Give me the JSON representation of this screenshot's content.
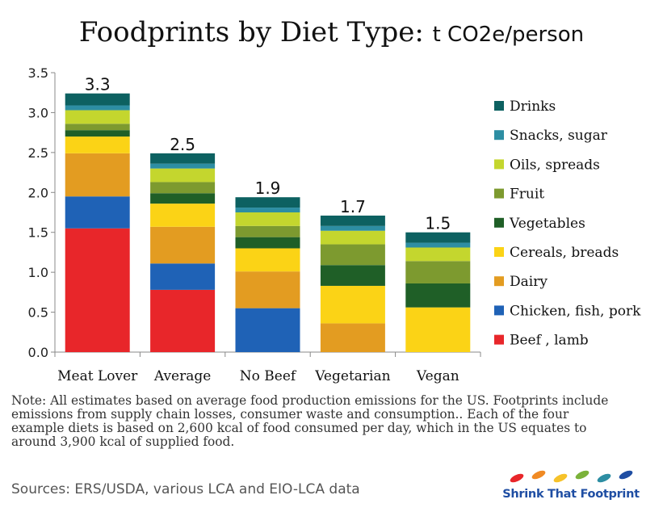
{
  "title": {
    "main": "Foodprints by Diet Type: ",
    "unit": "t CO2e/person"
  },
  "chart_data": {
    "type": "bar",
    "stacked": true,
    "categories": [
      "Meat Lover",
      "Average",
      "No Beef",
      "Vegetarian",
      "Vegan"
    ],
    "totals": [
      "3.3",
      "2.5",
      "1.9",
      "1.7",
      "1.5"
    ],
    "ylim": [
      0,
      3.5
    ],
    "yticks": [
      "0.0",
      "0.5",
      "1.0",
      "1.5",
      "2.0",
      "2.5",
      "3.0",
      "3.5"
    ],
    "grid": false,
    "legend_position": "right",
    "series": [
      {
        "name": "Beef , lamb",
        "color": "#e8262a",
        "values": [
          1.55,
          0.78,
          0,
          0,
          0
        ]
      },
      {
        "name": "Chicken, fish, pork",
        "color": "#1f62b6",
        "values": [
          0.4,
          0.33,
          0.55,
          0,
          0
        ]
      },
      {
        "name": "Dairy",
        "color": "#e39c21",
        "values": [
          0.54,
          0.46,
          0.46,
          0.36,
          0
        ]
      },
      {
        "name": "Cereals, breads",
        "color": "#fbd316",
        "values": [
          0.21,
          0.29,
          0.29,
          0.47,
          0.56
        ]
      },
      {
        "name": "Vegetables",
        "color": "#1f5f27",
        "values": [
          0.08,
          0.13,
          0.14,
          0.26,
          0.3
        ]
      },
      {
        "name": "Fruit",
        "color": "#7d9a2f",
        "values": [
          0.08,
          0.14,
          0.14,
          0.26,
          0.28
        ]
      },
      {
        "name": "Oils, spreads",
        "color": "#c4d62e",
        "values": [
          0.17,
          0.17,
          0.17,
          0.17,
          0.17
        ]
      },
      {
        "name": "Snacks, sugar",
        "color": "#2d8ea3",
        "values": [
          0.06,
          0.06,
          0.06,
          0.06,
          0.06
        ]
      },
      {
        "name": "Drinks",
        "color": "#0d6161",
        "values": [
          0.15,
          0.13,
          0.13,
          0.13,
          0.13
        ]
      }
    ],
    "legend_order": [
      "Drinks",
      "Snacks, sugar",
      "Oils, spreads",
      "Fruit",
      "Vegetables",
      "Cereals, breads",
      "Dairy",
      "Chicken, fish, pork",
      "Beef , lamb"
    ]
  },
  "note": "Note: All estimates based on average food production emissions for the US. Footprints include emissions from supply chain losses, consumer waste and consumption..  Each of the four example diets is based on 2,600 kcal of food consumed per day, which in the US equates to around 3,900 kcal of supplied food.",
  "sources": "Sources:  ERS/USDA, various LCA and EIO-LCA data",
  "logo": {
    "text": "Shrink That Footprint",
    "colors": [
      "#e8262a",
      "#f08a24",
      "#f6c22a",
      "#7bb23a",
      "#2d8ea3",
      "#1f4ea3"
    ]
  }
}
